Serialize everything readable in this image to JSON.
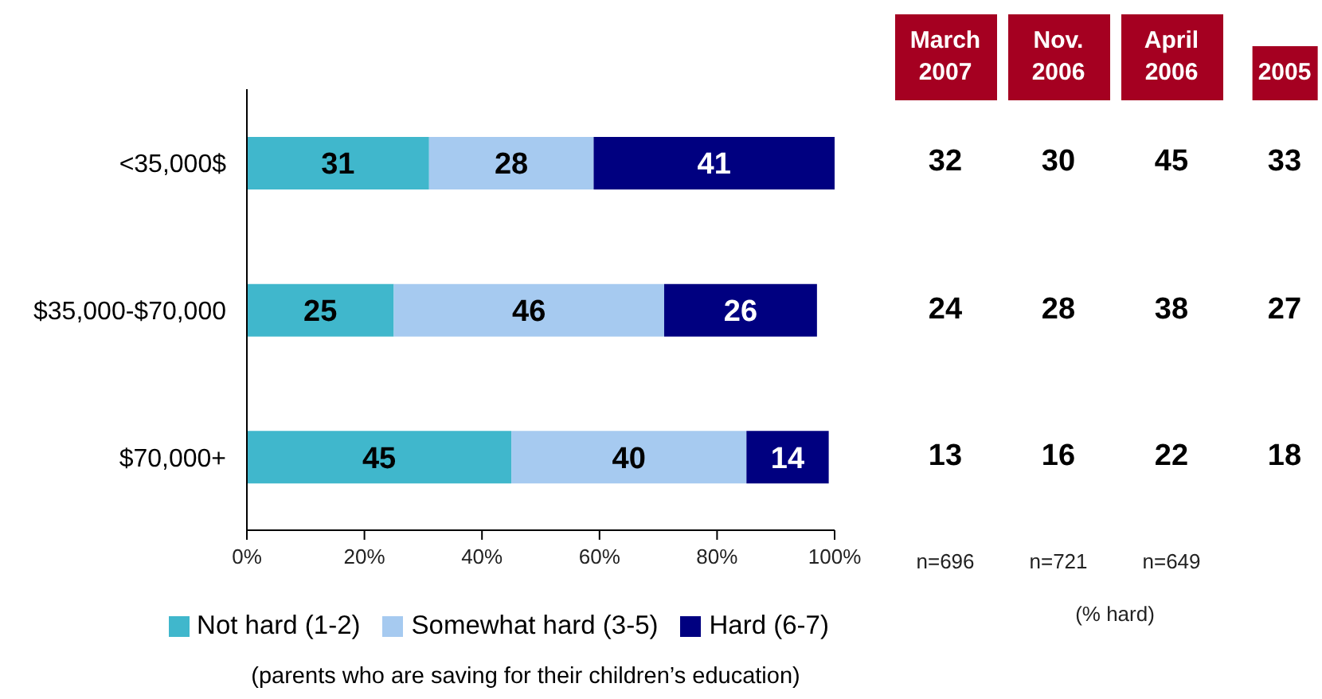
{
  "chart_data": [
    {
      "type": "bar",
      "orientation": "horizontal",
      "stacked": true,
      "categories": [
        "<35,000$",
        "$35,000-$70,000",
        "$70,000+"
      ],
      "series": [
        {
          "name": "Not hard (1-2)",
          "color": "#40b7cc",
          "values": [
            31,
            25,
            45
          ]
        },
        {
          "name": "Somewhat hard (3-5)",
          "color": "#a6caf0",
          "values": [
            28,
            46,
            40
          ]
        },
        {
          "name": "Hard (6-7)",
          "color": "#000080",
          "values": [
            41,
            26,
            14
          ]
        }
      ],
      "xlim": [
        0,
        100
      ],
      "xticks": [
        {
          "value": 0,
          "label": "0%"
        },
        {
          "value": 20,
          "label": "20%"
        },
        {
          "value": 40,
          "label": "40%"
        },
        {
          "value": 60,
          "label": "60%"
        },
        {
          "value": 80,
          "label": "80%"
        },
        {
          "value": 100,
          "label": "100%"
        }
      ],
      "data_labels": true,
      "legend": "bottom",
      "annotations": [
        "(parents who are saving for their children’s education)"
      ]
    },
    {
      "type": "other",
      "categories": [
        "March 2007",
        "Nov. 2006",
        "April 2006",
        "2005"
      ],
      "series": [
        {
          "values": [
            32,
            30,
            45,
            33
          ]
        },
        {
          "values": [
            24,
            28,
            38,
            27
          ]
        },
        {
          "values": [
            13,
            16,
            22,
            18
          ]
        }
      ],
      "data_labels": true,
      "annotations": [
        "n=696",
        "n=721",
        "n=649"
      ],
      "xlabel": "(% hard)"
    }
  ]
}
